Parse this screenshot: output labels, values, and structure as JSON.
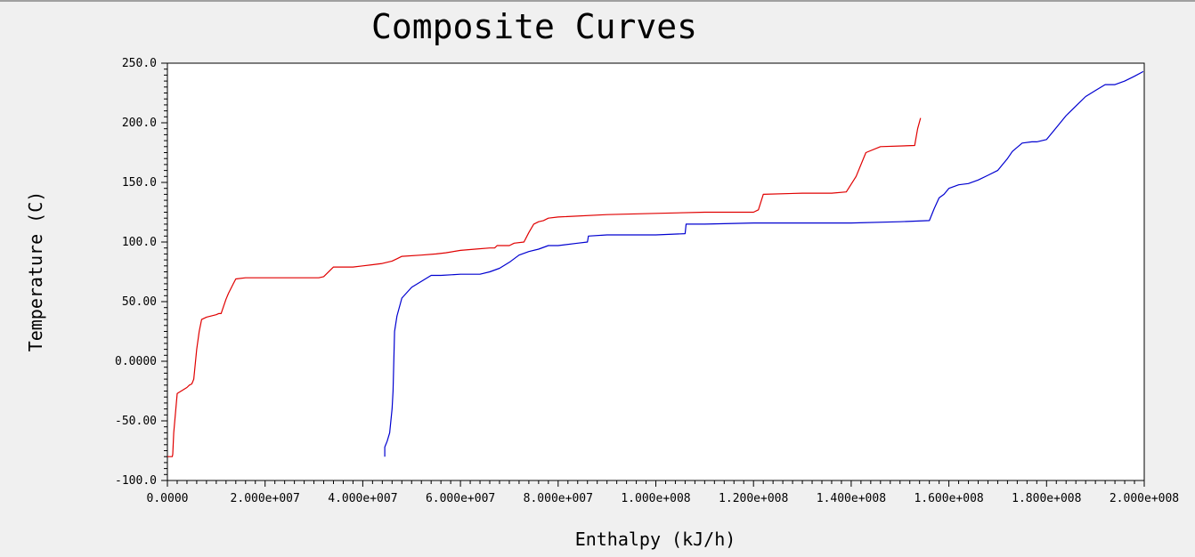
{
  "chart_data": {
    "type": "line",
    "title": "Composite Curves",
    "xlabel": "Enthalpy (kJ/h)",
    "ylabel": "Temperature (C)",
    "xlim": [
      0,
      200000000
    ],
    "ylim": [
      -100,
      250
    ],
    "x_ticks": [
      {
        "value": 0,
        "label": "0.0000"
      },
      {
        "value": 20000000,
        "label": "2.000e+007"
      },
      {
        "value": 40000000,
        "label": "4.000e+007"
      },
      {
        "value": 60000000,
        "label": "6.000e+007"
      },
      {
        "value": 80000000,
        "label": "8.000e+007"
      },
      {
        "value": 100000000,
        "label": "1.000e+008"
      },
      {
        "value": 120000000,
        "label": "1.200e+008"
      },
      {
        "value": 140000000,
        "label": "1.400e+008"
      },
      {
        "value": 160000000,
        "label": "1.600e+008"
      },
      {
        "value": 180000000,
        "label": "1.800e+008"
      },
      {
        "value": 200000000,
        "label": "2.000e+008"
      }
    ],
    "y_ticks": [
      {
        "value": 250,
        "label": "250.0"
      },
      {
        "value": 200,
        "label": "200.0"
      },
      {
        "value": 150,
        "label": "150.0"
      },
      {
        "value": 100,
        "label": "100.0"
      },
      {
        "value": 50,
        "label": "50.00"
      },
      {
        "value": 0,
        "label": "0.0000"
      },
      {
        "value": -50,
        "label": "-50.00"
      },
      {
        "value": -100,
        "label": "-100.0"
      }
    ],
    "grid": false,
    "legend": "none",
    "series": [
      {
        "color": "#e00000",
        "x": [
          0,
          1000000,
          1100000,
          1300000,
          2000000,
          4000000,
          4500000,
          5000000,
          5400000,
          6000000,
          6500000,
          7000000,
          8000000,
          10000000,
          10500000,
          11000000,
          12000000,
          12500000,
          13500000,
          14000000,
          16000000,
          25000000,
          31000000,
          32000000,
          34000000,
          38000000,
          40000000,
          42000000,
          44000000,
          46000000,
          47000000,
          48000000,
          52000000,
          55000000,
          57000000,
          60000000,
          63000000,
          66000000,
          67000000,
          67500000,
          70000000,
          71000000,
          73000000,
          74000000,
          75000000,
          76000000,
          77000000,
          78000000,
          80000000,
          90000000,
          100000000,
          110000000,
          120000000,
          121000000,
          122000000,
          130000000,
          136000000,
          139000000,
          141000000,
          143000000,
          146000000,
          153000000,
          153600000,
          154200000
        ],
        "y": [
          -80,
          -80,
          -78,
          -60,
          -27,
          -22,
          -20,
          -19,
          -15,
          10,
          25,
          35,
          37,
          39,
          40,
          40,
          52,
          57,
          65,
          69,
          70,
          70,
          70,
          71,
          79,
          79,
          80,
          81,
          82,
          84,
          86,
          88,
          89,
          90,
          91,
          93,
          94,
          95,
          95,
          97,
          97,
          99,
          100,
          108,
          115,
          117,
          118,
          120,
          121,
          123,
          124,
          125,
          125,
          127,
          140,
          141,
          141,
          142,
          155,
          175,
          180,
          181,
          195,
          204
        ]
      },
      {
        "color": "#0000d0",
        "x": [
          44500000,
          44500000,
          45000000,
          45500000,
          46000000,
          46200000,
          46500000,
          47000000,
          48000000,
          50000000,
          54000000,
          56000000,
          60000000,
          64000000,
          66000000,
          68000000,
          70000000,
          72000000,
          74000000,
          76000000,
          78000000,
          80000000,
          84000000,
          86000000,
          86200000,
          90000000,
          100000000,
          106000000,
          106200000,
          110000000,
          120000000,
          140000000,
          150000000,
          156000000,
          157000000,
          158000000,
          159000000,
          160000000,
          162000000,
          164000000,
          166000000,
          168000000,
          170000000,
          171000000,
          172000000,
          173000000,
          175000000,
          177000000,
          178000000,
          180000000,
          182000000,
          184000000,
          186000000,
          188000000,
          190000000,
          192000000,
          194000000,
          196000000,
          198000000,
          199800000
        ],
        "y": [
          -80,
          -72,
          -67,
          -60,
          -40,
          -25,
          25,
          38,
          53,
          62,
          72,
          72,
          73,
          73,
          75,
          78,
          83,
          89,
          92,
          94,
          97,
          97,
          99,
          100,
          105,
          106,
          106,
          107,
          115,
          115,
          116,
          116,
          117,
          118,
          128,
          137,
          140,
          145,
          148,
          149,
          152,
          156,
          160,
          165,
          170,
          176,
          183,
          184,
          184,
          186,
          196,
          206,
          214,
          222,
          227,
          232,
          232,
          235,
          239,
          243
        ]
      }
    ]
  }
}
